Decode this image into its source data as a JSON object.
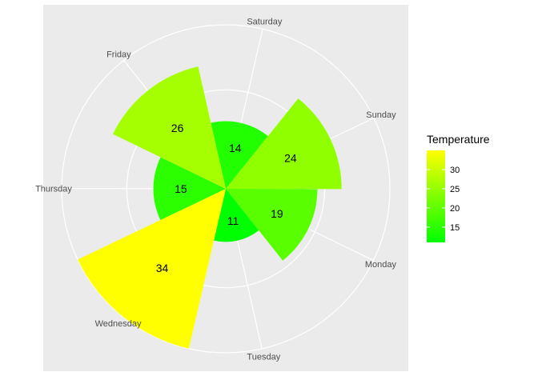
{
  "chart_data": {
    "type": "bar",
    "coord": "polar",
    "title": "",
    "categories": [
      "Saturday",
      "Sunday",
      "Monday",
      "Tuesday",
      "Wednesday",
      "Thursday",
      "Friday"
    ],
    "values": [
      14,
      24,
      19,
      11,
      34,
      15,
      26
    ],
    "grid": true,
    "legend": {
      "title": "Temperature",
      "placement": "right",
      "ticks": [
        15,
        20,
        25,
        30
      ],
      "range": [
        11,
        34
      ],
      "color_low": "#00ff00",
      "color_high": "#ffff00"
    }
  },
  "colors": {
    "panel": "#ebebeb",
    "grid": "#ffffff",
    "low": "#00ff00",
    "high": "#ffff00"
  }
}
